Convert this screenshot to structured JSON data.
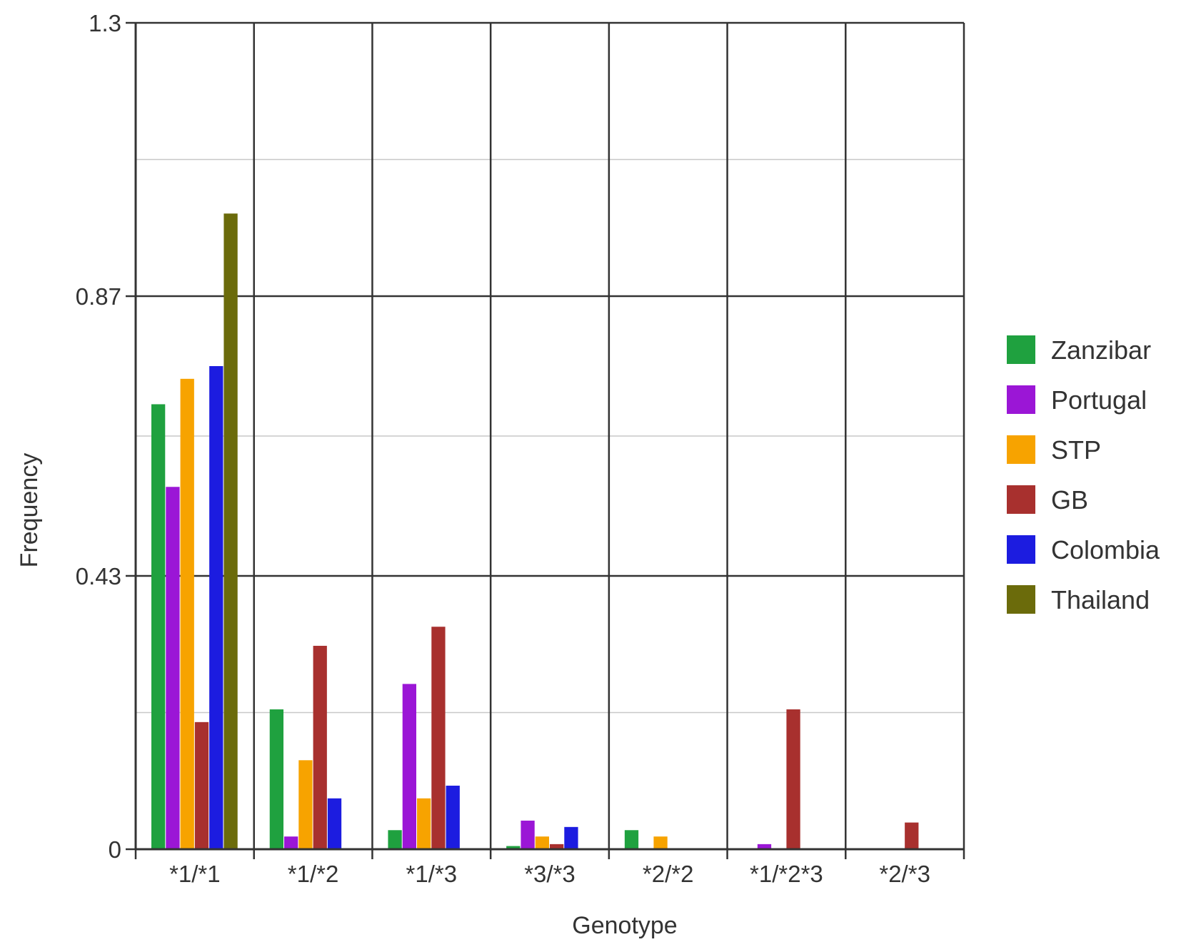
{
  "chart_data": {
    "type": "bar",
    "title": "",
    "xlabel": "Genotype",
    "ylabel": "Frequency",
    "ylim": [
      0,
      1.3
    ],
    "yticks": [
      0,
      0.43,
      0.87,
      1.3
    ],
    "ytick_labels": [
      "0",
      "0.43",
      "0.87",
      "1.3"
    ],
    "categories": [
      "*1/*1",
      "*1/*2",
      "*1/*3",
      "*3/*3",
      "*2/*2",
      "*1/*2*3",
      "*2/*3"
    ],
    "grid": true,
    "legend_position": "right",
    "series": [
      {
        "name": "Zanzibar",
        "color": "#1fa13f",
        "values": [
          0.7,
          0.22,
          0.03,
          0.005,
          0.03,
          0.0,
          0.0
        ]
      },
      {
        "name": "Portugal",
        "color": "#9b16d6",
        "values": [
          0.57,
          0.02,
          0.26,
          0.045,
          0.0,
          0.008,
          0.0
        ]
      },
      {
        "name": "STP",
        "color": "#f7a300",
        "values": [
          0.74,
          0.14,
          0.08,
          0.02,
          0.02,
          0.0,
          0.0
        ]
      },
      {
        "name": "GB",
        "color": "#a8302e",
        "values": [
          0.2,
          0.32,
          0.35,
          0.008,
          0.0,
          0.22,
          0.042
        ]
      },
      {
        "name": "Colombia",
        "color": "#1c1ce0",
        "values": [
          0.76,
          0.08,
          0.1,
          0.035,
          0.0,
          0.0,
          0.0
        ]
      },
      {
        "name": "Thailand",
        "color": "#6b6b0b",
        "values": [
          1.0,
          0.0,
          0.0,
          0.0,
          0.0,
          0.0,
          0.0
        ]
      }
    ]
  }
}
